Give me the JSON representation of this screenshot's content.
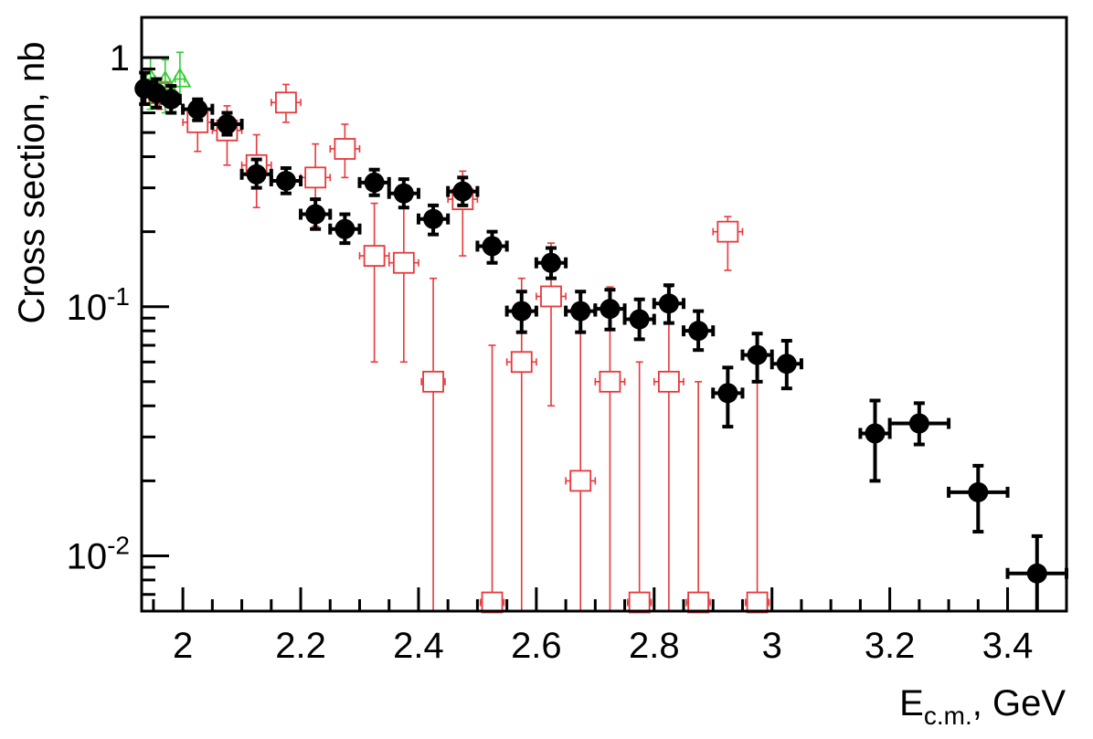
{
  "chart_data": {
    "type": "scatter",
    "xlabel": "E",
    "xlabel_sub": "c.m.",
    "xlabel_suffix": ", GeV",
    "ylabel": "Cross section, nb",
    "xlim": [
      1.93,
      3.5
    ],
    "ylim": [
      0.006,
      1.45
    ],
    "yscale": "log",
    "grid": false,
    "x_ticks": [
      {
        "value": 2.0,
        "label": "2"
      },
      {
        "value": 2.2,
        "label": "2.2"
      },
      {
        "value": 2.4,
        "label": "2.4"
      },
      {
        "value": 2.6,
        "label": "2.6"
      },
      {
        "value": 2.8,
        "label": "2.8"
      },
      {
        "value": 3.0,
        "label": "3"
      },
      {
        "value": 3.2,
        "label": "3.2"
      },
      {
        "value": 3.4,
        "label": "3.4"
      }
    ],
    "y_ticks": [
      {
        "value": 1,
        "base": "1",
        "exp": ""
      },
      {
        "value": 0.1,
        "base": "10",
        "exp": "-1"
      },
      {
        "value": 0.01,
        "base": "10",
        "exp": "-2"
      }
    ],
    "series": [
      {
        "marker": "filled-circle",
        "color": "#000000",
        "points": [
          {
            "x": 1.935,
            "xerr": 0.01,
            "y": 0.75,
            "ylo": 0.65,
            "yhi": 0.87
          },
          {
            "x": 1.955,
            "xerr": 0.01,
            "y": 0.72,
            "ylo": 0.63,
            "yhi": 0.82
          },
          {
            "x": 1.98,
            "xerr": 0.015,
            "y": 0.68,
            "ylo": 0.6,
            "yhi": 0.77
          },
          {
            "x": 2.025,
            "xerr": 0.025,
            "y": 0.62,
            "ylo": 0.56,
            "yhi": 0.68
          },
          {
            "x": 2.075,
            "xerr": 0.025,
            "y": 0.54,
            "ylo": 0.49,
            "yhi": 0.6
          },
          {
            "x": 2.125,
            "xerr": 0.025,
            "y": 0.34,
            "ylo": 0.3,
            "yhi": 0.39
          },
          {
            "x": 2.175,
            "xerr": 0.025,
            "y": 0.32,
            "ylo": 0.285,
            "yhi": 0.36
          },
          {
            "x": 2.225,
            "xerr": 0.025,
            "y": 0.235,
            "ylo": 0.205,
            "yhi": 0.27
          },
          {
            "x": 2.275,
            "xerr": 0.025,
            "y": 0.205,
            "ylo": 0.18,
            "yhi": 0.235
          },
          {
            "x": 2.325,
            "xerr": 0.025,
            "y": 0.315,
            "ylo": 0.28,
            "yhi": 0.355
          },
          {
            "x": 2.375,
            "xerr": 0.025,
            "y": 0.285,
            "ylo": 0.25,
            "yhi": 0.325
          },
          {
            "x": 2.425,
            "xerr": 0.025,
            "y": 0.225,
            "ylo": 0.195,
            "yhi": 0.255
          },
          {
            "x": 2.475,
            "xerr": 0.025,
            "y": 0.29,
            "ylo": 0.255,
            "yhi": 0.33
          },
          {
            "x": 2.525,
            "xerr": 0.025,
            "y": 0.175,
            "ylo": 0.15,
            "yhi": 0.2
          },
          {
            "x": 2.575,
            "xerr": 0.025,
            "y": 0.096,
            "ylo": 0.079,
            "yhi": 0.115
          },
          {
            "x": 2.625,
            "xerr": 0.025,
            "y": 0.15,
            "ylo": 0.13,
            "yhi": 0.172
          },
          {
            "x": 2.675,
            "xerr": 0.025,
            "y": 0.096,
            "ylo": 0.079,
            "yhi": 0.115
          },
          {
            "x": 2.725,
            "xerr": 0.025,
            "y": 0.098,
            "ylo": 0.081,
            "yhi": 0.117
          },
          {
            "x": 2.775,
            "xerr": 0.025,
            "y": 0.089,
            "ylo": 0.074,
            "yhi": 0.107
          },
          {
            "x": 2.825,
            "xerr": 0.025,
            "y": 0.103,
            "ylo": 0.086,
            "yhi": 0.122
          },
          {
            "x": 2.875,
            "xerr": 0.025,
            "y": 0.08,
            "ylo": 0.067,
            "yhi": 0.096
          },
          {
            "x": 2.925,
            "xerr": 0.025,
            "y": 0.045,
            "ylo": 0.033,
            "yhi": 0.057
          },
          {
            "x": 2.975,
            "xerr": 0.025,
            "y": 0.064,
            "ylo": 0.05,
            "yhi": 0.078
          },
          {
            "x": 3.025,
            "xerr": 0.025,
            "y": 0.059,
            "ylo": 0.047,
            "yhi": 0.073
          },
          {
            "x": 3.175,
            "xerr": 0.025,
            "y": 0.031,
            "ylo": 0.02,
            "yhi": 0.042
          },
          {
            "x": 3.25,
            "xerr": 0.05,
            "y": 0.034,
            "ylo": 0.028,
            "yhi": 0.041
          },
          {
            "x": 3.35,
            "xerr": 0.05,
            "y": 0.018,
            "ylo": 0.0125,
            "yhi": 0.023
          },
          {
            "x": 3.45,
            "xerr": 0.05,
            "y": 0.0085,
            "ylo": 0.006,
            "yhi": 0.012
          }
        ]
      },
      {
        "marker": "open-square",
        "color": "#e8383b",
        "points": [
          {
            "x": 1.96,
            "xerr": 0.012,
            "y": 0.72,
            "ylo": 0.62,
            "yhi": 0.82
          },
          {
            "x": 2.025,
            "xerr": 0.025,
            "y": 0.55,
            "ylo": 0.42,
            "yhi": 0.66
          },
          {
            "x": 2.075,
            "xerr": 0.025,
            "y": 0.51,
            "ylo": 0.37,
            "yhi": 0.64
          },
          {
            "x": 2.125,
            "xerr": 0.025,
            "y": 0.37,
            "ylo": 0.25,
            "yhi": 0.49
          },
          {
            "x": 2.175,
            "xerr": 0.025,
            "y": 0.66,
            "ylo": 0.55,
            "yhi": 0.78
          },
          {
            "x": 2.225,
            "xerr": 0.025,
            "y": 0.33,
            "ylo": 0.21,
            "yhi": 0.45
          },
          {
            "x": 2.275,
            "xerr": 0.025,
            "y": 0.43,
            "ylo": 0.33,
            "yhi": 0.54
          },
          {
            "x": 2.325,
            "xerr": 0.025,
            "y": 0.16,
            "ylo": 0.06,
            "yhi": 0.26
          },
          {
            "x": 2.375,
            "xerr": 0.025,
            "y": 0.15,
            "ylo": 0.06,
            "yhi": 0.25
          },
          {
            "x": 2.425,
            "xerr": 0.02,
            "y": 0.05,
            "ylo": 0.001,
            "yhi": 0.13
          },
          {
            "x": 2.475,
            "xerr": 0.025,
            "y": 0.27,
            "ylo": 0.16,
            "yhi": 0.35
          },
          {
            "x": 2.525,
            "xerr": 0.02,
            "y": 0.0065,
            "ylo": 0.001,
            "yhi": 0.07
          },
          {
            "x": 2.575,
            "xerr": 0.025,
            "y": 0.06,
            "ylo": 0.001,
            "yhi": 0.13
          },
          {
            "x": 2.625,
            "xerr": 0.025,
            "y": 0.11,
            "ylo": 0.04,
            "yhi": 0.18
          },
          {
            "x": 2.675,
            "xerr": 0.025,
            "y": 0.02,
            "ylo": 0.001,
            "yhi": 0.09
          },
          {
            "x": 2.725,
            "xerr": 0.025,
            "y": 0.05,
            "ylo": 0.001,
            "yhi": 0.12
          },
          {
            "x": 2.775,
            "xerr": 0.02,
            "y": 0.0065,
            "ylo": 0.001,
            "yhi": 0.06
          },
          {
            "x": 2.825,
            "xerr": 0.025,
            "y": 0.05,
            "ylo": 0.001,
            "yhi": 0.12
          },
          {
            "x": 2.875,
            "xerr": 0.02,
            "y": 0.0065,
            "ylo": 0.001,
            "yhi": 0.05
          },
          {
            "x": 2.925,
            "xerr": 0.025,
            "y": 0.2,
            "ylo": 0.14,
            "yhi": 0.23
          },
          {
            "x": 2.975,
            "xerr": 0.02,
            "y": 0.0065,
            "ylo": 0.001,
            "yhi": 0.05
          }
        ]
      },
      {
        "marker": "open-triangle",
        "color": "#33cc33",
        "points": [
          {
            "x": 1.945,
            "xerr": 0.008,
            "y": 0.82,
            "ylo": 0.62,
            "yhi": 1.0
          },
          {
            "x": 1.97,
            "xerr": 0.008,
            "y": 0.8,
            "ylo": 0.6,
            "yhi": 0.98
          },
          {
            "x": 1.995,
            "xerr": 0.008,
            "y": 0.82,
            "ylo": 0.65,
            "yhi": 1.05
          }
        ]
      }
    ]
  }
}
